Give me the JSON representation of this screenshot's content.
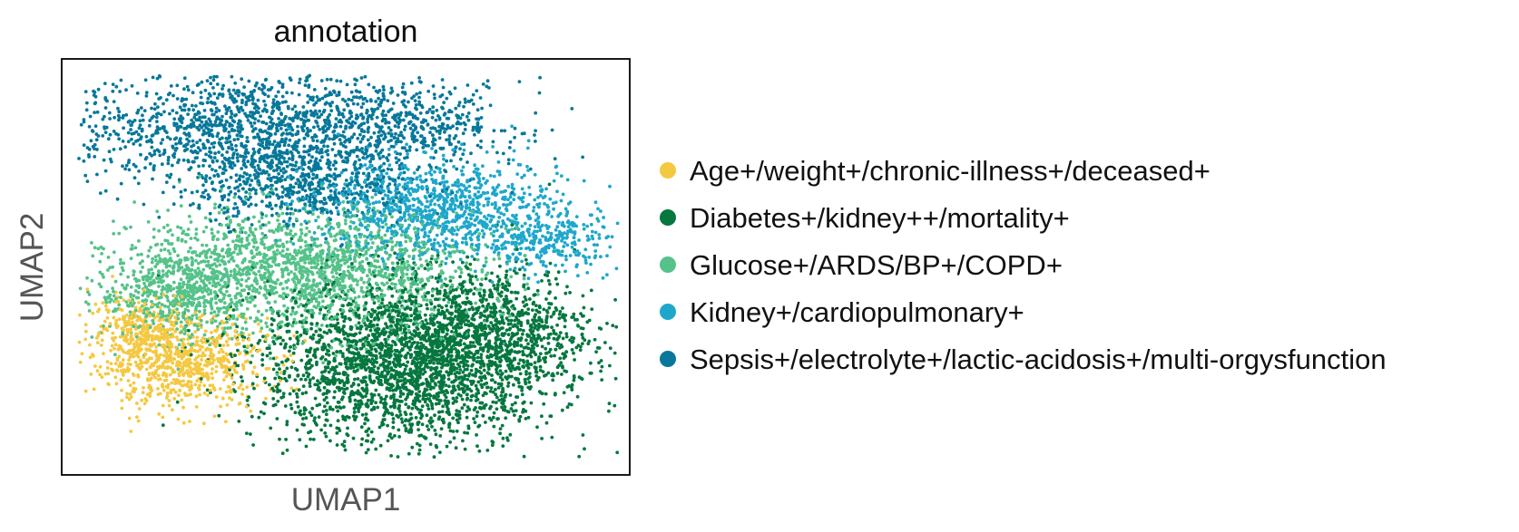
{
  "chart_data": {
    "type": "scatter",
    "title": "annotation",
    "xlabel": "UMAP1",
    "ylabel": "UMAP2",
    "xlim": [
      0,
      10
    ],
    "ylim": [
      0,
      10
    ],
    "x_ticks": [],
    "y_ticks": [],
    "grid": false,
    "legend_position": "right",
    "series": [
      {
        "name": "Age+/weight+/chronic-illness+/deceased+",
        "color": "#f5c842",
        "clusters": [
          {
            "cx": 2.1,
            "cy": 2.7,
            "sx": 0.75,
            "sy": 0.55,
            "n": 700
          },
          {
            "cx": 1.4,
            "cy": 3.5,
            "sx": 0.45,
            "sy": 0.45,
            "n": 250
          }
        ]
      },
      {
        "name": "Diabetes+/kidney++/mortality+",
        "color": "#05773f",
        "clusters": [
          {
            "cx": 6.1,
            "cy": 2.7,
            "sx": 1.3,
            "sy": 1.0,
            "n": 2600
          },
          {
            "cx": 7.6,
            "cy": 3.5,
            "sx": 0.9,
            "sy": 0.7,
            "n": 700
          }
        ]
      },
      {
        "name": "Glucose+/ARDS/BP+/COPD+",
        "color": "#55c289",
        "clusters": [
          {
            "cx": 4.3,
            "cy": 4.9,
            "sx": 1.5,
            "sy": 0.75,
            "n": 1800
          },
          {
            "cx": 2.0,
            "cy": 4.4,
            "sx": 0.7,
            "sy": 0.55,
            "n": 500
          }
        ]
      },
      {
        "name": "Kidney+/cardiopulmonary+",
        "color": "#1fa7cb",
        "clusters": [
          {
            "cx": 6.6,
            "cy": 6.4,
            "sx": 1.1,
            "sy": 0.6,
            "n": 1000
          },
          {
            "cx": 8.5,
            "cy": 5.6,
            "sx": 0.7,
            "sy": 0.35,
            "n": 280
          }
        ]
      },
      {
        "name": "Sepsis+/electrolyte+/lactic-acidosis+/multi-orgysfunction",
        "color": "#07789a",
        "clusters": [
          {
            "cx": 3.4,
            "cy": 8.3,
            "sx": 1.6,
            "sy": 0.7,
            "n": 1500
          },
          {
            "cx": 4.3,
            "cy": 6.9,
            "sx": 1.0,
            "sy": 0.45,
            "n": 500
          },
          {
            "cx": 6.3,
            "cy": 8.5,
            "sx": 0.9,
            "sy": 0.5,
            "n": 300
          }
        ]
      }
    ]
  }
}
